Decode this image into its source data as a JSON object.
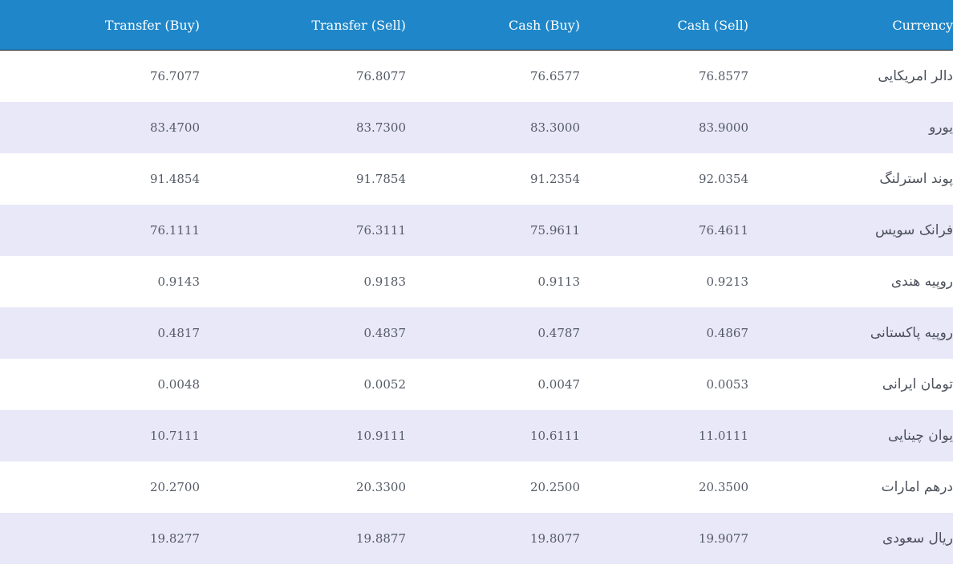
{
  "table": {
    "headers": {
      "transfer_buy": "Transfer (Buy)",
      "transfer_sell": "Transfer (Sell)",
      "cash_buy": "Cash (Buy)",
      "cash_sell": "Cash (Sell)",
      "currency": "Currency"
    },
    "rows": [
      {
        "currency": "دالر امریکایی",
        "transfer_buy": "76.7077",
        "transfer_sell": "76.8077",
        "cash_buy": "76.6577",
        "cash_sell": "76.8577"
      },
      {
        "currency": "یورو",
        "transfer_buy": "83.4700",
        "transfer_sell": "83.7300",
        "cash_buy": "83.3000",
        "cash_sell": "83.9000"
      },
      {
        "currency": "پوند استرلنگ",
        "transfer_buy": "91.4854",
        "transfer_sell": "91.7854",
        "cash_buy": "91.2354",
        "cash_sell": "92.0354"
      },
      {
        "currency": "فرانک سویس",
        "transfer_buy": "76.1111",
        "transfer_sell": "76.3111",
        "cash_buy": "75.9611",
        "cash_sell": "76.4611"
      },
      {
        "currency": "روپیه هندی",
        "transfer_buy": "0.9143",
        "transfer_sell": "0.9183",
        "cash_buy": "0.9113",
        "cash_sell": "0.9213"
      },
      {
        "currency": "روپیه پاکستانی",
        "transfer_buy": "0.4817",
        "transfer_sell": "0.4837",
        "cash_buy": "0.4787",
        "cash_sell": "0.4867"
      },
      {
        "currency": "تومان ایرانی",
        "transfer_buy": "0.0048",
        "transfer_sell": "0.0052",
        "cash_buy": "0.0047",
        "cash_sell": "0.0053"
      },
      {
        "currency": "یوان چینایی",
        "transfer_buy": "10.7111",
        "transfer_sell": "10.9111",
        "cash_buy": "10.6111",
        "cash_sell": "11.0111"
      },
      {
        "currency": "درهم امارات",
        "transfer_buy": "20.2700",
        "transfer_sell": "20.3300",
        "cash_buy": "20.2500",
        "cash_sell": "20.3500"
      },
      {
        "currency": "ریال سعودی",
        "transfer_buy": "19.8277",
        "transfer_sell": "19.8877",
        "cash_buy": "19.8077",
        "cash_sell": "19.9077"
      }
    ]
  }
}
